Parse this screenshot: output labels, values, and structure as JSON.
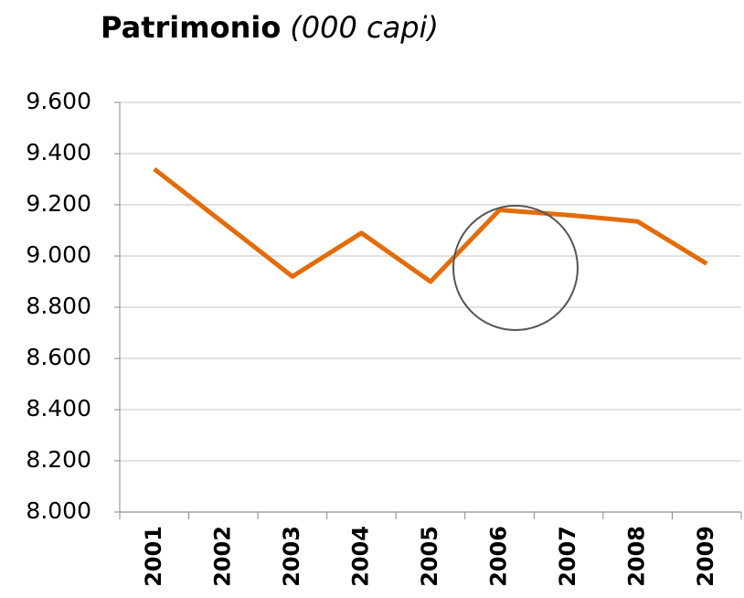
{
  "chart_data": {
    "type": "line",
    "title": "Patrimonio",
    "subtitle": "(000 capi)",
    "categories": [
      "2001",
      "2002",
      "2003",
      "2004",
      "2005",
      "2006",
      "2007",
      "2008",
      "2009"
    ],
    "series": [
      {
        "name": "Patrimonio",
        "color": "#e36c0a",
        "values": [
          9340,
          9130,
          8920,
          9090,
          8900,
          9180,
          9160,
          9135,
          8970
        ]
      }
    ],
    "ylim": [
      8000,
      9600
    ],
    "yticks": [
      {
        "value": 8000,
        "label": "8.000"
      },
      {
        "value": 8200,
        "label": "8.200"
      },
      {
        "value": 8400,
        "label": "8.400"
      },
      {
        "value": 8600,
        "label": "8.600"
      },
      {
        "value": 8800,
        "label": "8.800"
      },
      {
        "value": 9000,
        "label": "9.000"
      },
      {
        "value": 9200,
        "label": "9.200"
      },
      {
        "value": 9400,
        "label": "9.400"
      },
      {
        "value": 9600,
        "label": "9.600"
      }
    ],
    "grid": true
  }
}
